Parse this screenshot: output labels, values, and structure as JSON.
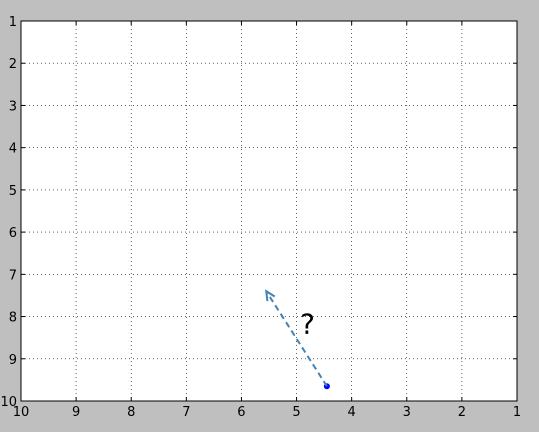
{
  "chart_data": {
    "type": "scatter",
    "title": "",
    "xlabel": "",
    "ylabel": "",
    "xlim": [
      10,
      1
    ],
    "ylim": [
      10,
      1
    ],
    "x_inverted": true,
    "y_inverted": true,
    "xticks": [
      10,
      9,
      8,
      7,
      6,
      5,
      4,
      3,
      2,
      1
    ],
    "yticks": [
      1,
      2,
      3,
      4,
      5,
      6,
      7,
      8,
      9,
      10
    ],
    "grid": true,
    "grid_style": "dotted",
    "series": [
      {
        "points": [
          {
            "x": 4.45,
            "y": 9.65
          }
        ],
        "color": "#0000ff"
      }
    ],
    "annotation": {
      "text": "?",
      "text_at": {
        "x": 4.8,
        "y": 8.4
      },
      "arrow_from": {
        "x": 4.45,
        "y": 9.65
      },
      "arrow_to": {
        "x": 5.55,
        "y": 7.4
      },
      "arrow_color": "#4682b4",
      "arrow_style": "dashed"
    }
  }
}
